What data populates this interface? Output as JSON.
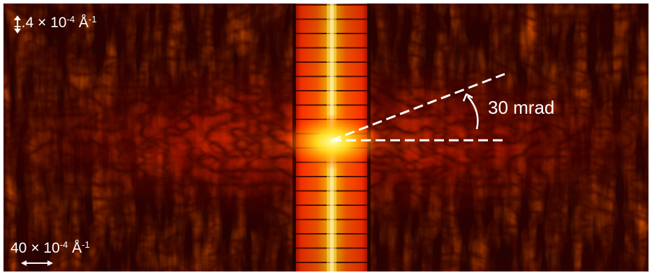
{
  "scale_bars": {
    "vertical": {
      "value": "1.4 × 10",
      "exponent": "-4",
      "unit": "Å",
      "unit_exponent": "-1"
    },
    "horizontal": {
      "value": "40 × 10",
      "exponent": "-4",
      "unit": "Å",
      "unit_exponent": "-1"
    }
  },
  "annotation": {
    "angle_label": "30 mrad"
  },
  "colors": {
    "background": "#180202",
    "colormap": "hot",
    "annotation": "#ffffff",
    "frame": "#ffffff"
  }
}
